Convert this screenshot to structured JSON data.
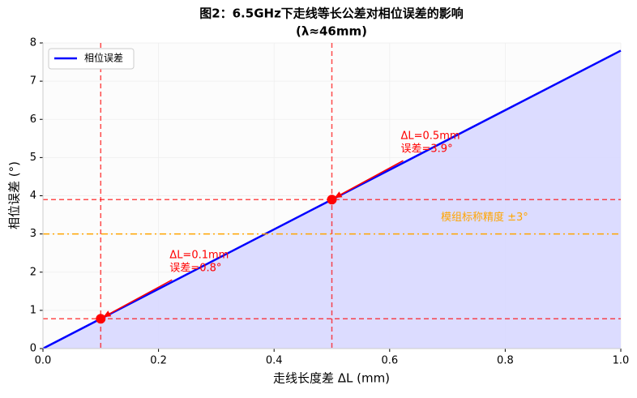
{
  "chart_data": {
    "type": "line",
    "title": "图2：6.5GHz下走线等长公差对相位误差的影响",
    "subtitle": "(λ≈46mm)",
    "x_label": "走线长度差 ΔL (mm)",
    "y_label": "相位误差 (°)",
    "xlim": [
      0,
      1
    ],
    "ylim": [
      0,
      8
    ],
    "xticks": [
      {
        "value": 0,
        "label": "0.0"
      },
      0.2,
      0.4,
      0.6,
      0.8,
      {
        "value": 1,
        "label": "1.0"
      }
    ],
    "yticks": [
      0,
      1,
      2,
      3,
      4,
      5,
      6,
      7,
      8
    ],
    "grid": true,
    "legend": "upper left",
    "series": [
      {
        "name": "相位误差",
        "color": "#0000ff",
        "fill": "#d8d8ff",
        "x": [
          0,
          1
        ],
        "values": [
          0,
          7.8
        ]
      }
    ],
    "markers": {
      "color": "#ff0000",
      "x": [
        0.1,
        0.5
      ],
      "values": [
        0.78,
        3.9
      ],
      "annotations": [
        [
          "ΔL=0.1mm",
          "误差=0.8°"
        ],
        [
          "ΔL=0.5mm",
          "误差=3.9°"
        ]
      ]
    },
    "tolerance": {
      "value": 3,
      "label": "模组标称精度 ±3°",
      "color": "#ffa500"
    }
  }
}
